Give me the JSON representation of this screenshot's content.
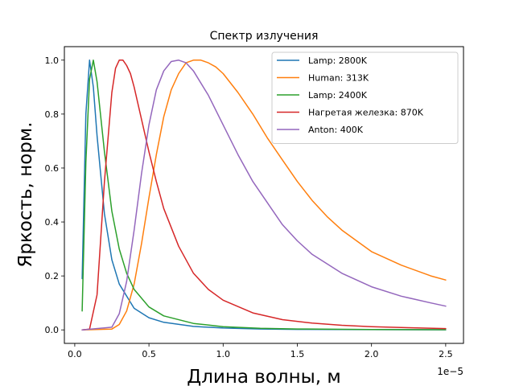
{
  "chart_data": {
    "type": "line",
    "title": "Спектр излучения",
    "xlabel": "Длина волны, м",
    "ylabel": "Яркость, норм.",
    "x_offset_label": "1e−5",
    "xlim": [
      -0.07,
      2.62
    ],
    "ylim": [
      -0.05,
      1.05
    ],
    "x_ticks": [
      0.0,
      0.5,
      1.0,
      1.5,
      2.0,
      2.5
    ],
    "x_tick_labels": [
      "0.0",
      "0.5",
      "1.0",
      "1.5",
      "2.0",
      "2.5"
    ],
    "y_ticks": [
      0.0,
      0.2,
      0.4,
      0.6,
      0.8,
      1.0
    ],
    "y_tick_labels": [
      "0.0",
      "0.2",
      "0.4",
      "0.6",
      "0.8",
      "1.0"
    ],
    "grid": false,
    "legend_position": "top-right",
    "series": [
      {
        "name": "Lamp: 2800K",
        "color": "#1f77b4",
        "x": [
          0.05,
          0.075,
          0.1,
          0.125,
          0.15,
          0.2,
          0.25,
          0.3,
          0.4,
          0.5,
          0.6,
          0.8,
          1.0,
          1.25,
          1.5,
          2.0,
          2.5
        ],
        "y": [
          0.19,
          0.8,
          1.0,
          0.9,
          0.72,
          0.43,
          0.26,
          0.17,
          0.08,
          0.045,
          0.028,
          0.013,
          0.007,
          0.0035,
          0.002,
          0.001,
          0.0005
        ]
      },
      {
        "name": "Human: 313K",
        "color": "#ff7f0e",
        "x": [
          0.05,
          0.25,
          0.3,
          0.35,
          0.4,
          0.45,
          0.5,
          0.55,
          0.6,
          0.65,
          0.7,
          0.75,
          0.8,
          0.85,
          0.9,
          0.95,
          1.0,
          1.1,
          1.2,
          1.3,
          1.4,
          1.5,
          1.6,
          1.7,
          1.8,
          1.9,
          2.0,
          2.2,
          2.4,
          2.5
        ],
        "y": [
          0.0,
          0.003,
          0.02,
          0.07,
          0.17,
          0.32,
          0.49,
          0.65,
          0.79,
          0.89,
          0.95,
          0.99,
          1.0,
          1.0,
          0.99,
          0.975,
          0.95,
          0.88,
          0.8,
          0.71,
          0.63,
          0.55,
          0.48,
          0.42,
          0.37,
          0.33,
          0.29,
          0.24,
          0.2,
          0.185
        ]
      },
      {
        "name": "Lamp: 2400K",
        "color": "#2ca02c",
        "x": [
          0.05,
          0.075,
          0.1,
          0.125,
          0.15,
          0.2,
          0.25,
          0.3,
          0.35,
          0.4,
          0.5,
          0.6,
          0.8,
          1.0,
          1.25,
          1.5,
          2.0,
          2.5
        ],
        "y": [
          0.07,
          0.62,
          0.93,
          1.0,
          0.92,
          0.66,
          0.44,
          0.3,
          0.21,
          0.15,
          0.085,
          0.052,
          0.024,
          0.012,
          0.006,
          0.0035,
          0.0015,
          0.0008
        ]
      },
      {
        "name": "Нагретая железка: 870K",
        "color": "#d62728",
        "x": [
          0.05,
          0.1,
          0.15,
          0.2,
          0.25,
          0.275,
          0.3,
          0.325,
          0.35,
          0.375,
          0.4,
          0.45,
          0.5,
          0.55,
          0.6,
          0.7,
          0.8,
          0.9,
          1.0,
          1.2,
          1.4,
          1.6,
          1.8,
          2.0,
          2.25,
          2.5
        ],
        "y": [
          0.0,
          0.003,
          0.13,
          0.55,
          0.88,
          0.97,
          1.0,
          1.0,
          0.98,
          0.95,
          0.9,
          0.78,
          0.66,
          0.55,
          0.45,
          0.31,
          0.21,
          0.15,
          0.11,
          0.063,
          0.038,
          0.025,
          0.017,
          0.012,
          0.008,
          0.005
        ]
      },
      {
        "name": "Anton: 400K",
        "color": "#9467bd",
        "x": [
          0.05,
          0.25,
          0.3,
          0.35,
          0.4,
          0.45,
          0.5,
          0.55,
          0.6,
          0.65,
          0.7,
          0.75,
          0.8,
          0.9,
          1.0,
          1.1,
          1.2,
          1.3,
          1.4,
          1.5,
          1.6,
          1.8,
          2.0,
          2.2,
          2.4,
          2.5
        ],
        "y": [
          0.0,
          0.01,
          0.06,
          0.18,
          0.37,
          0.58,
          0.76,
          0.89,
          0.96,
          0.995,
          1.0,
          0.99,
          0.96,
          0.87,
          0.76,
          0.65,
          0.55,
          0.47,
          0.39,
          0.33,
          0.28,
          0.21,
          0.16,
          0.125,
          0.1,
          0.088
        ]
      }
    ]
  }
}
